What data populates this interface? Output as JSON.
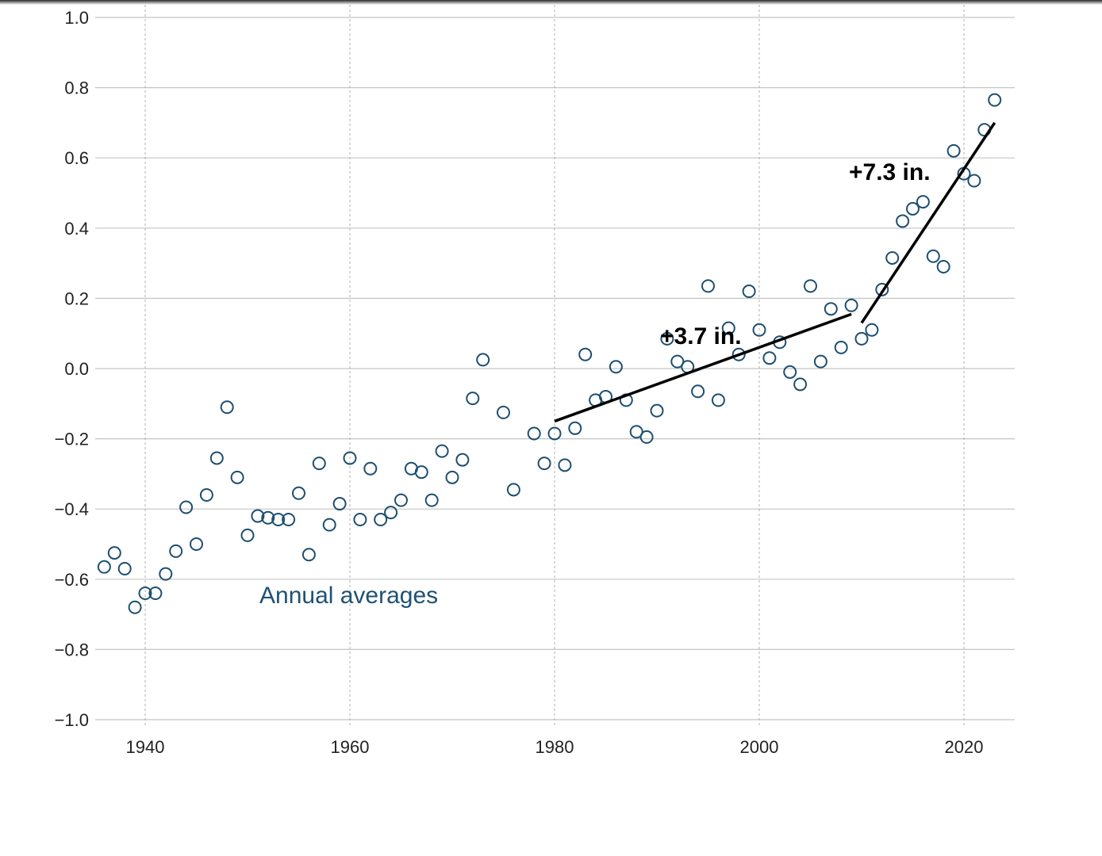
{
  "chart_data": {
    "type": "scatter",
    "title": "",
    "xlabel": "",
    "ylabel": "",
    "xlim": [
      1935.8,
      2025
    ],
    "ylim": [
      -1.0,
      1.0
    ],
    "x_ticks": [
      1940,
      1960,
      1980,
      2000,
      2020
    ],
    "y_ticks": [
      {
        "value": 1.0,
        "label": "1.0"
      },
      {
        "value": 0.8,
        "label": "0.8"
      },
      {
        "value": 0.6,
        "label": "0.6"
      },
      {
        "value": 0.4,
        "label": "0.4"
      },
      {
        "value": 0.2,
        "label": "0.2"
      },
      {
        "value": 0.0,
        "label": "0.0"
      },
      {
        "value": -0.2,
        "label": "−0.2"
      },
      {
        "value": -0.4,
        "label": "−0.4"
      },
      {
        "value": -0.6,
        "label": "−0.6"
      },
      {
        "value": -0.8,
        "label": "−0.8"
      },
      {
        "value": -1.0,
        "label": "−1.0"
      }
    ],
    "grid": {
      "horizontal": "solid",
      "vertical": "dashed"
    },
    "marker_color": "#1e4f6f",
    "series": [
      {
        "name": "Annual averages",
        "points": [
          [
            1936,
            -0.565
          ],
          [
            1937,
            -0.525
          ],
          [
            1938,
            -0.57
          ],
          [
            1939,
            -0.68
          ],
          [
            1940,
            -0.64
          ],
          [
            1941,
            -0.64
          ],
          [
            1942,
            -0.585
          ],
          [
            1943,
            -0.52
          ],
          [
            1944,
            -0.395
          ],
          [
            1945,
            -0.5
          ],
          [
            1946,
            -0.36
          ],
          [
            1947,
            -0.255
          ],
          [
            1948,
            -0.11
          ],
          [
            1949,
            -0.31
          ],
          [
            1950,
            -0.475
          ],
          [
            1951,
            -0.42
          ],
          [
            1952,
            -0.425
          ],
          [
            1953,
            -0.43
          ],
          [
            1954,
            -0.43
          ],
          [
            1955,
            -0.355
          ],
          [
            1956,
            -0.53
          ],
          [
            1957,
            -0.27
          ],
          [
            1958,
            -0.445
          ],
          [
            1959,
            -0.385
          ],
          [
            1960,
            -0.255
          ],
          [
            1961,
            -0.43
          ],
          [
            1962,
            -0.285
          ],
          [
            1963,
            -0.43
          ],
          [
            1964,
            -0.41
          ],
          [
            1965,
            -0.375
          ],
          [
            1966,
            -0.285
          ],
          [
            1967,
            -0.295
          ],
          [
            1968,
            -0.375
          ],
          [
            1969,
            -0.235
          ],
          [
            1970,
            -0.31
          ],
          [
            1971,
            -0.26
          ],
          [
            1972,
            -0.085
          ],
          [
            1973,
            0.025
          ],
          [
            1975,
            -0.125
          ],
          [
            1976,
            -0.345
          ],
          [
            1978,
            -0.185
          ],
          [
            1979,
            -0.27
          ],
          [
            1980,
            -0.185
          ],
          [
            1981,
            -0.275
          ],
          [
            1982,
            -0.17
          ],
          [
            1983,
            0.04
          ],
          [
            1984,
            -0.09
          ],
          [
            1985,
            -0.08
          ],
          [
            1986,
            0.005
          ],
          [
            1987,
            -0.09
          ],
          [
            1988,
            -0.18
          ],
          [
            1989,
            -0.195
          ],
          [
            1990,
            -0.12
          ],
          [
            1991,
            0.085
          ],
          [
            1992,
            0.02
          ],
          [
            1993,
            0.005
          ],
          [
            1994,
            -0.065
          ],
          [
            1995,
            0.235
          ],
          [
            1996,
            -0.09
          ],
          [
            1997,
            0.115
          ],
          [
            1998,
            0.04
          ],
          [
            1999,
            0.22
          ],
          [
            2000,
            0.11
          ],
          [
            2001,
            0.03
          ],
          [
            2002,
            0.075
          ],
          [
            2003,
            -0.01
          ],
          [
            2004,
            -0.045
          ],
          [
            2005,
            0.235
          ],
          [
            2006,
            0.02
          ],
          [
            2007,
            0.17
          ],
          [
            2008,
            0.06
          ],
          [
            2009,
            0.18
          ],
          [
            2010,
            0.085
          ],
          [
            2011,
            0.11
          ],
          [
            2012,
            0.225
          ],
          [
            2013,
            0.315
          ],
          [
            2014,
            0.42
          ],
          [
            2015,
            0.455
          ],
          [
            2016,
            0.475
          ],
          [
            2017,
            0.32
          ],
          [
            2018,
            0.29
          ],
          [
            2019,
            0.62
          ],
          [
            2020,
            0.555
          ],
          [
            2021,
            0.535
          ],
          [
            2022,
            0.68
          ],
          [
            2023,
            0.765
          ]
        ]
      }
    ],
    "trend_lines": [
      {
        "label": "+3.7 in.",
        "from": [
          1980,
          -0.15
        ],
        "to": [
          2009,
          0.155
        ]
      },
      {
        "label": "+7.3 in.",
        "from": [
          2010,
          0.13
        ],
        "to": [
          2023,
          0.7
        ]
      }
    ]
  }
}
